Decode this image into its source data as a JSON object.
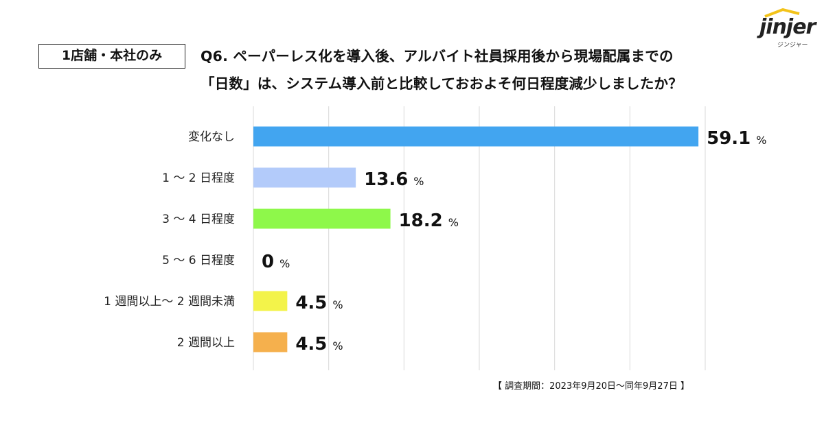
{
  "logo": {
    "word": "jinjer",
    "subtitle": "ジンジャー"
  },
  "header": {
    "segment": "1店舗・本社のみ",
    "question_line1": "Q6. ペーパーレス化を導入後、アルバイト社員採用後から現場配属までの",
    "question_line2": "「日数」は、システム導入前と比較しておおよそ何日程度減少しましたか？"
  },
  "chart_data": {
    "type": "bar",
    "orientation": "horizontal",
    "title": "Q6. ペーパーレス化を導入後、アルバイト社員採用後から現場配属までの「日数」は、システム導入前と比較しておおよそ何日程度減少しましたか？",
    "categories": [
      "変化なし",
      "1 〜 2 日程度",
      "3 〜 4 日程度",
      "5 〜 6 日程度",
      "1 週間以上〜 2 週間未満",
      "2 週間以上"
    ],
    "values": [
      59.1,
      13.6,
      18.2,
      0,
      4.5,
      4.5
    ],
    "value_labels": [
      "59.1",
      "13.6",
      "18.2",
      "0",
      "4.5",
      "4.5"
    ],
    "unit": "%",
    "colors": [
      "#42a5f0",
      "#b3cbfa",
      "#8ef84a",
      "#ffffff",
      "#f3f34a",
      "#f5b04d"
    ],
    "xlim": [
      0,
      60
    ],
    "gridlines": [
      0,
      10,
      20,
      30,
      40,
      50,
      60
    ],
    "grid": true,
    "xlabel": "",
    "ylabel": ""
  },
  "footer": {
    "survey_period": "【 調査期間：2023年9月20日〜同年9月27日 】"
  }
}
